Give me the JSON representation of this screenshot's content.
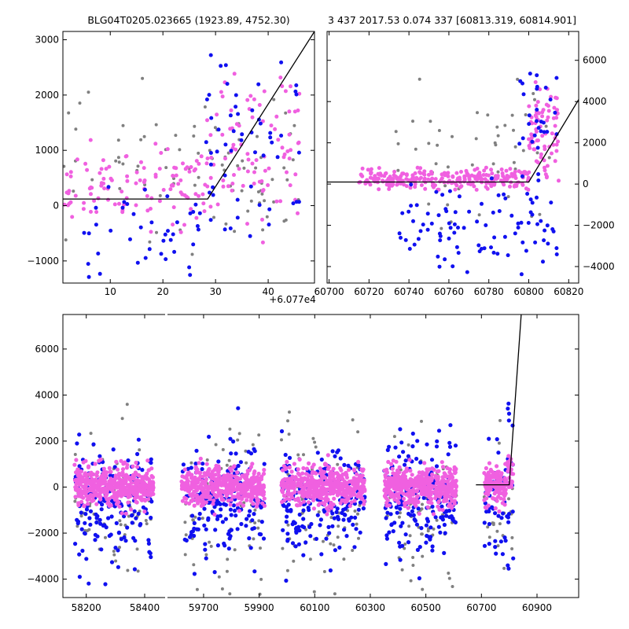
{
  "chart_data": [
    {
      "id": "top-left",
      "type": "scatter",
      "title": "BLG04T0205.023665 (1923.89, 4752.30)",
      "xlim": [
        1,
        48.8
      ],
      "ylim": [
        -1400,
        3150
      ],
      "xticks": [
        10,
        20,
        30,
        40
      ],
      "yticks": [
        -1000,
        0,
        1000,
        2000,
        3000
      ],
      "xaxis_offset_label": "+6.077e4",
      "yaxis_side": "left",
      "model_line": {
        "x": [
          1,
          28.5,
          48.8
        ],
        "y": [
          120,
          120,
          3150
        ]
      },
      "series": [
        {
          "name": "gray",
          "color": "#808080",
          "bands": [
            {
              "x": [
                1,
                28
              ],
              "ymin": -1000,
              "ymax": 3000,
              "n": 40
            },
            {
              "x": [
                28,
                46
              ],
              "ymin": -900,
              "ymax": 2300,
              "n": 45
            }
          ]
        },
        {
          "name": "magenta",
          "color": "#f060e0",
          "bands": [
            {
              "x": [
                1,
                28
              ],
              "ymin": -500,
              "ymax": 1200,
              "n": 110
            },
            {
              "x": [
                28,
                46
              ],
              "ymin": -800,
              "ymax": 2800,
              "n": 90
            }
          ]
        },
        {
          "name": "blue",
          "color": "#1010f0",
          "bands": [
            {
              "x": [
                5,
                28
              ],
              "ymin": -1300,
              "ymax": 500,
              "n": 40
            },
            {
              "x": [
                28,
                46
              ],
              "ymin": -800,
              "ymax": 3100,
              "n": 55
            }
          ]
        }
      ]
    },
    {
      "id": "top-right",
      "type": "scatter",
      "title": "3 437 2017.53 0.074 337 [60813.319, 60814.901]",
      "xlim": [
        60699,
        60825
      ],
      "ylim": [
        -4800,
        7400
      ],
      "xticks": [
        60700,
        60720,
        60740,
        60760,
        60780,
        60800,
        60820
      ],
      "yticks": [
        -4000,
        -2000,
        0,
        2000,
        4000,
        6000
      ],
      "yaxis_side": "right",
      "model_line": {
        "x": [
          60699,
          60800,
          60825
        ],
        "y": [
          100,
          100,
          4100
        ]
      },
      "series": [
        {
          "name": "gray",
          "color": "#808080",
          "bands": [
            {
              "x": [
                60730,
                60815
              ],
              "ymin": -2200,
              "ymax": 6000,
              "n": 50
            }
          ]
        },
        {
          "name": "magenta",
          "color": "#f060e0",
          "bands": [
            {
              "x": [
                60715,
                60800
              ],
              "ymin": -300,
              "ymax": 800,
              "n": 260
            },
            {
              "x": [
                60800,
                60815
              ],
              "ymin": 0,
              "ymax": 5200,
              "n": 80
            }
          ]
        },
        {
          "name": "blue",
          "color": "#1010f0",
          "bands": [
            {
              "x": [
                60735,
                60815
              ],
              "ymin": -4400,
              "ymax": 300,
              "n": 90
            },
            {
              "x": [
                60795,
                60815
              ],
              "ymin": 0,
              "ymax": 5500,
              "n": 30
            }
          ]
        }
      ]
    },
    {
      "id": "bottom",
      "type": "scatter",
      "title": "",
      "ylim": [
        -4800,
        7500
      ],
      "yticks": [
        -4000,
        -2000,
        0,
        2000,
        4000,
        6000
      ],
      "segments": [
        {
          "xlim": [
            58120,
            58470
          ],
          "xticks": [
            58200,
            58400
          ]
        },
        {
          "xlim": [
            59570,
            61050
          ],
          "xticks": [
            59700,
            59900,
            60100,
            60300,
            60500,
            60700,
            60900
          ]
        }
      ],
      "seasons": [
        {
          "x": [
            58160,
            58430
          ]
        },
        {
          "x": [
            59620,
            59920
          ]
        },
        {
          "x": [
            59980,
            60280
          ]
        },
        {
          "x": [
            60350,
            60610
          ]
        },
        {
          "x": [
            60710,
            60815
          ]
        }
      ],
      "model_line": {
        "x": [
          60680,
          60800,
          60843
        ],
        "y": [
          100,
          100,
          7500
        ]
      },
      "series": [
        {
          "name": "gray",
          "color": "#808080",
          "ymin": -4800,
          "ymax": 7000,
          "n_per_season": 70
        },
        {
          "name": "blue",
          "color": "#1010f0",
          "ymin": -4700,
          "ymax": 3500,
          "n_per_season": 180
        },
        {
          "name": "magenta",
          "color": "#f060e0",
          "ymin": -1200,
          "ymax": 1200,
          "n_per_season": 450,
          "outlier_max": 7300
        }
      ]
    }
  ]
}
